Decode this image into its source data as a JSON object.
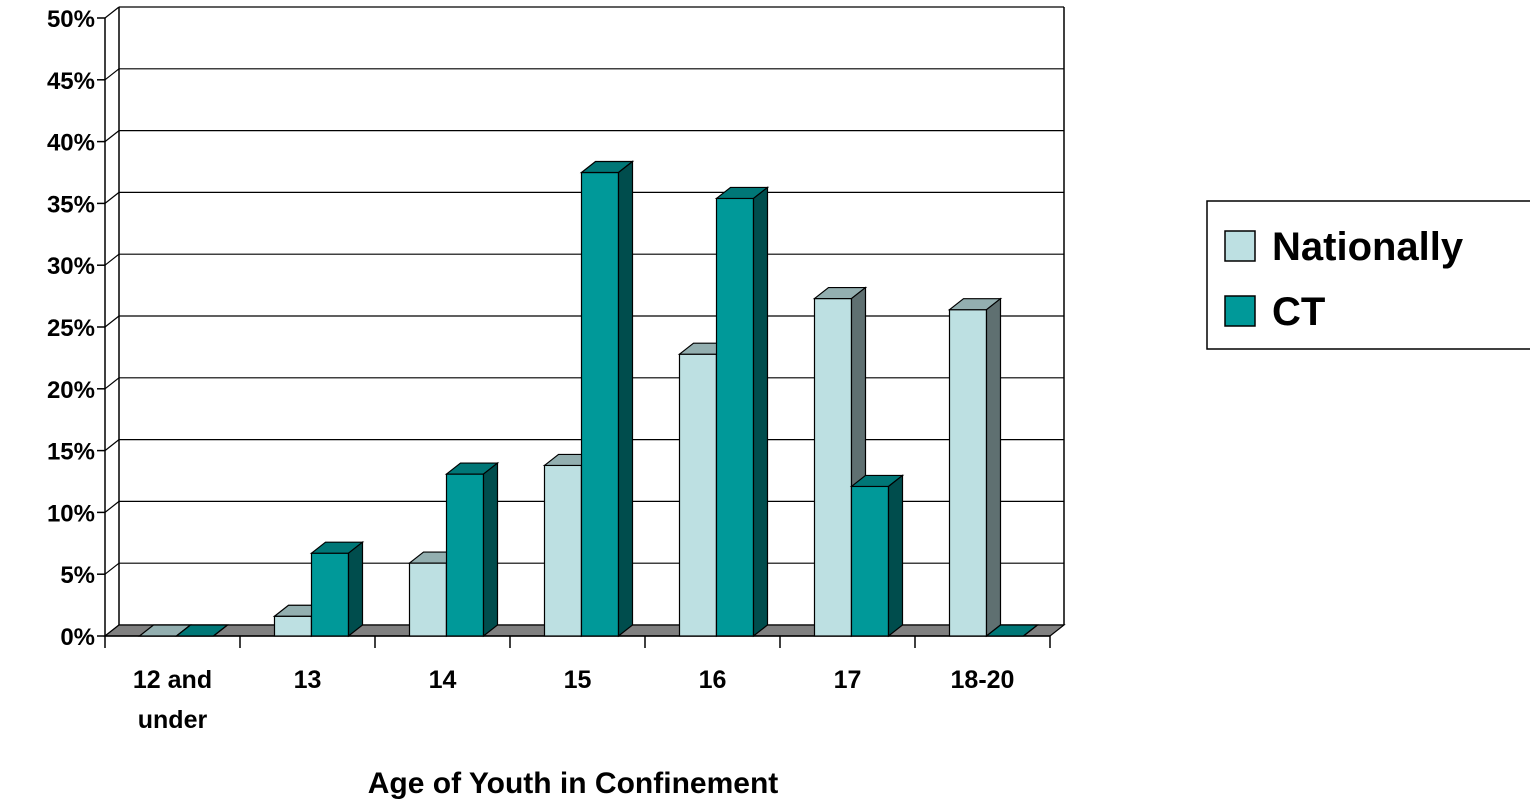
{
  "chart_data": {
    "type": "bar",
    "style": "3d-clustered-column",
    "categories": [
      "12 and under",
      "13",
      "14",
      "15",
      "16",
      "17",
      "18-20"
    ],
    "category_lines": [
      [
        "12 and",
        "under"
      ],
      [
        "13"
      ],
      [
        "14"
      ],
      [
        "15"
      ],
      [
        "16"
      ],
      [
        "17"
      ],
      [
        "18-20"
      ]
    ],
    "series": [
      {
        "name": "Nationally",
        "values": [
          0,
          1.6,
          5.9,
          13.8,
          22.8,
          27.3,
          26.4
        ],
        "color": "#bde0e2"
      },
      {
        "name": "CT",
        "values": [
          0,
          6.7,
          13.1,
          37.5,
          35.4,
          12.1,
          0
        ],
        "color": "#009999"
      }
    ],
    "xlabel": "Age of Youth in Confinement",
    "ylabel": "",
    "ylim": [
      0,
      50
    ],
    "ytick_step": 5,
    "ytick_format": "percent",
    "grid": true,
    "legend": "right"
  }
}
